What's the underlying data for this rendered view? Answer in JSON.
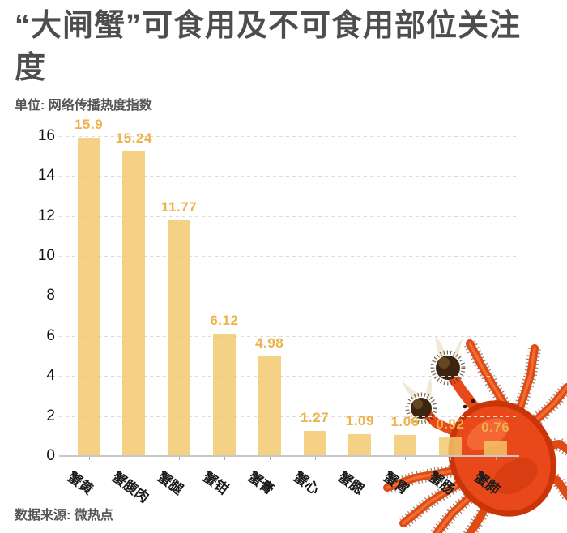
{
  "header": {
    "title_line1": "“大闸蟹”可食用及不可食用部位关注",
    "title_line2": "度",
    "unit_label": "单位: 网络传播热度指数"
  },
  "footer": {
    "source_label": "数据来源: 微热点"
  },
  "colors": {
    "bar": "#F3C76B",
    "value_label": "#EEB24A",
    "title_text": "#4D4D4D",
    "caption_text": "#555555",
    "axis_tick_text": "#111111",
    "gridline": "#DCDCDC",
    "axis_line": "#C8C8C8",
    "crab_shell": "#E8481A",
    "crab_mitten": "#3B2510"
  },
  "chart_data": {
    "type": "bar",
    "title": "“大闸蟹”可食用及不可食用部位关注度",
    "unit": "网络传播热度指数",
    "categories": [
      "蟹黄",
      "蟹腹肉",
      "蟹腿",
      "蟹钳",
      "蟹膏",
      "蟹心",
      "蟹腮",
      "蟹胃",
      "蟹肠",
      "蟹肺"
    ],
    "values": [
      15.9,
      15.24,
      11.77,
      6.12,
      4.98,
      1.27,
      1.09,
      1.06,
      0.92,
      0.76
    ],
    "value_labels": [
      "15.9",
      "15.24",
      "11.77",
      "6.12",
      "4.98",
      "1.27",
      "1.09",
      "1.06",
      "0.92",
      "0.76"
    ],
    "ylim": [
      0,
      16
    ],
    "yticks": [
      0,
      2,
      4,
      6,
      8,
      10,
      12,
      14,
      16
    ],
    "grid": "dashed-horizontal",
    "legend": "none",
    "xlabel": "",
    "ylabel": "网络传播热度指数",
    "source": "微热点"
  },
  "decoration": {
    "crab_image": "hairy-crab-photo"
  }
}
